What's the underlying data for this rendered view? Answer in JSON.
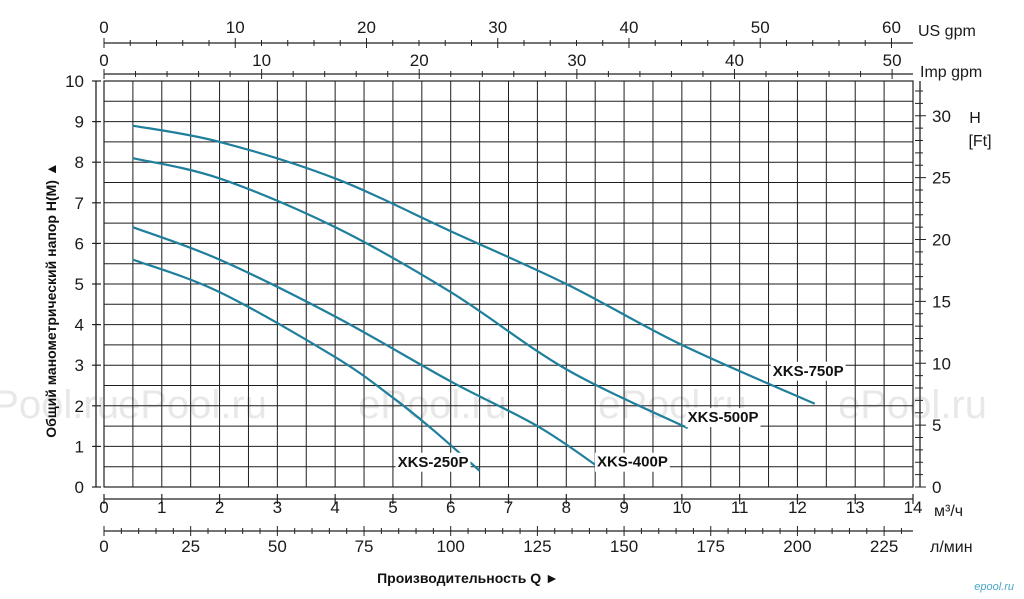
{
  "chart_data": {
    "type": "line",
    "ylabel": "Общий манометрический напор H(M) ▲",
    "xlabel": "Производительность Q ►",
    "x_unit_m3h": "м³/ч",
    "x_unit_lmin": "л/мин",
    "top_unit_us": "US gpm",
    "top_unit_imp": "Imp gpm",
    "right_unit_top": "H",
    "right_unit_bottom": "[Ft]",
    "xlim_m3h": [
      0,
      14
    ],
    "ylim_m": [
      0,
      10
    ],
    "x_ticks_m3h": [
      "0",
      "1",
      "2",
      "3",
      "4",
      "5",
      "6",
      "7",
      "8",
      "9",
      "10",
      "11",
      "12",
      "13",
      "14"
    ],
    "x_ticks_lmin": [
      "0",
      "25",
      "50",
      "75",
      "100",
      "125",
      "150",
      "175",
      "200",
      "225"
    ],
    "top_ticks_us": [
      "0",
      "10",
      "20",
      "30",
      "40",
      "50",
      "60"
    ],
    "top_ticks_imp": [
      "0",
      "10",
      "20",
      "30",
      "40",
      "50"
    ],
    "y_ticks_m": [
      "0",
      "1",
      "2",
      "3",
      "4",
      "5",
      "6",
      "7",
      "8",
      "9",
      "10"
    ],
    "right_ticks_ft": [
      "0",
      "5",
      "10",
      "15",
      "20",
      "25",
      "30"
    ],
    "series": [
      {
        "name": "XKS-250P",
        "x": [
          0.5,
          2,
          4,
          5,
          5.7,
          6.5
        ],
        "y": [
          5.6,
          4.8,
          3.2,
          2.2,
          1.4,
          0.4
        ]
      },
      {
        "name": "XKS-400P",
        "x": [
          0.5,
          2,
          4,
          6,
          7.5,
          8.6
        ],
        "y": [
          6.4,
          5.6,
          4.2,
          2.6,
          1.5,
          0.45
        ]
      },
      {
        "name": "XKS-500P",
        "x": [
          0.5,
          2,
          4,
          6,
          8,
          10.1
        ],
        "y": [
          8.1,
          7.6,
          6.4,
          4.8,
          2.9,
          1.45
        ]
      },
      {
        "name": "XKS-750P",
        "x": [
          0.5,
          2,
          4,
          6,
          8,
          10,
          12.3
        ],
        "y": [
          8.9,
          8.5,
          7.6,
          6.3,
          5,
          3.5,
          2.05
        ]
      }
    ],
    "watermark": "ePool.ru",
    "brand": "epool.ru"
  }
}
